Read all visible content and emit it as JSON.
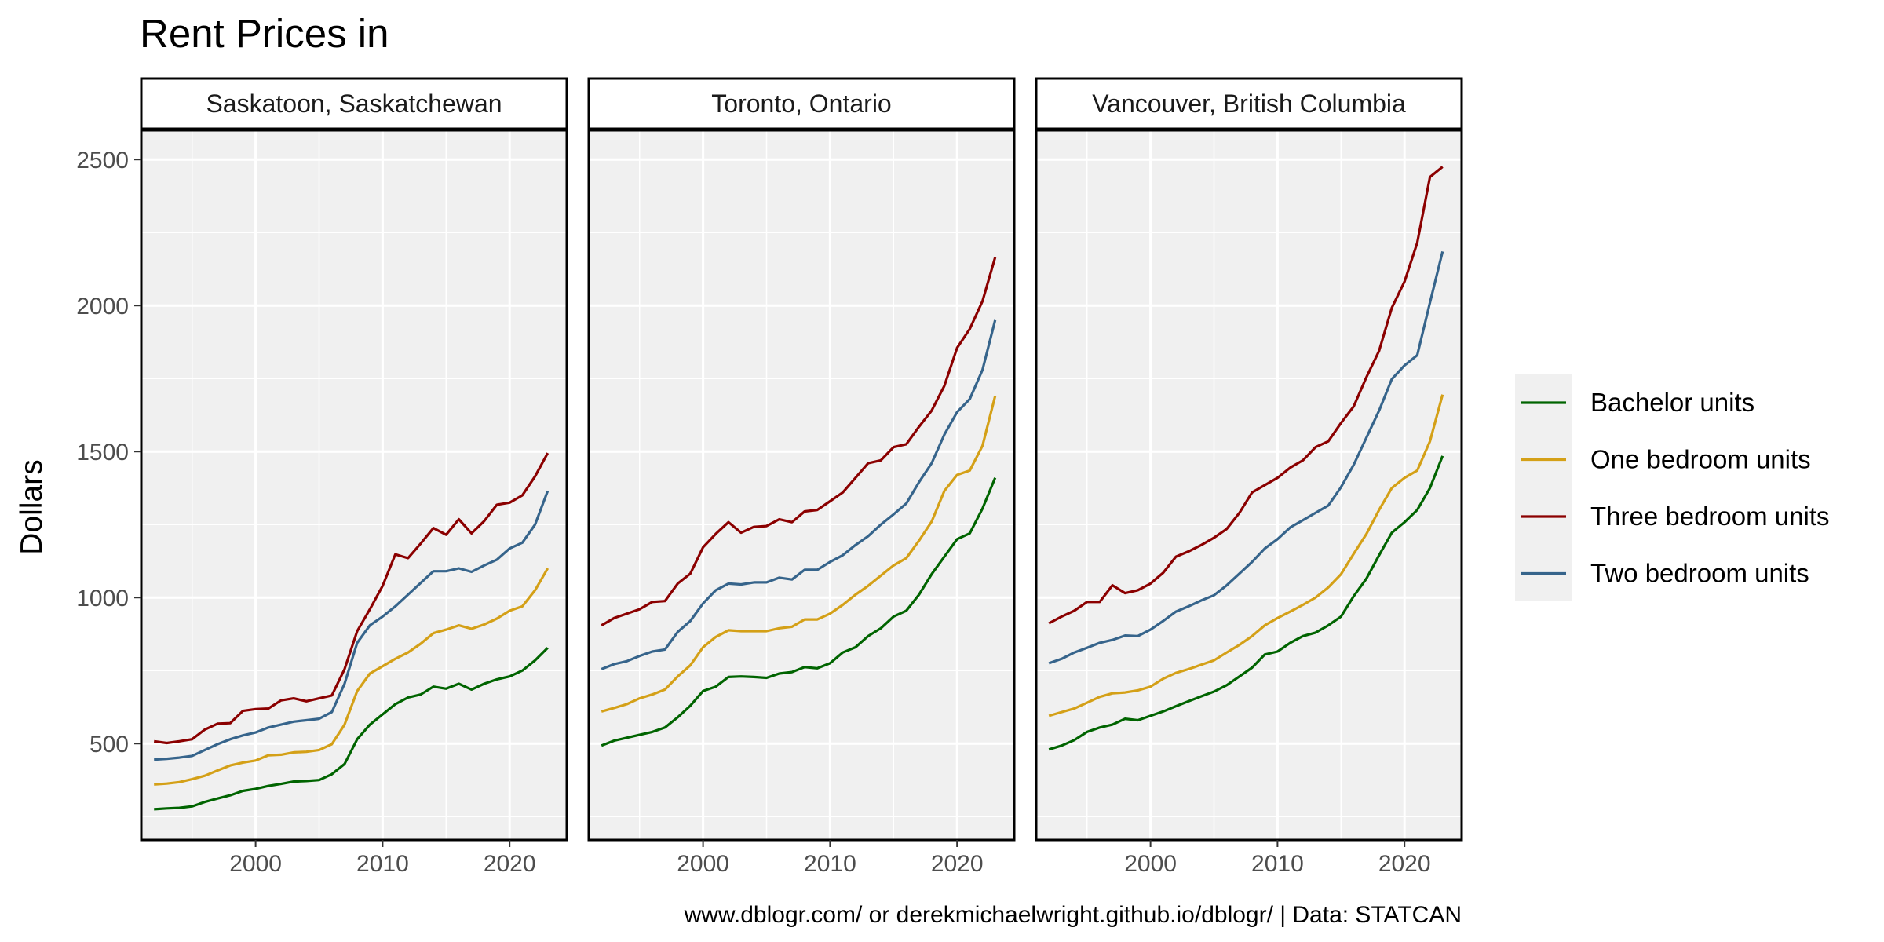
{
  "chart_data": {
    "type": "line",
    "title": "Rent Prices in",
    "ylabel": "Dollars",
    "xlabel": "",
    "caption": "www.dblogr.com/ or derekmichaelwright.github.io/dblogr/ | Data: STATCAN",
    "xlim": [
      1991,
      2024.5
    ],
    "ylim": [
      170,
      2600
    ],
    "x_ticks": [
      2000,
      2010,
      2020
    ],
    "y_ticks": [
      500,
      1000,
      1500,
      2000,
      2500
    ],
    "grid": true,
    "legend_position": "right",
    "series_styles": [
      {
        "name": "Bachelor units",
        "color": "#006400"
      },
      {
        "name": "One bedroom units",
        "color": "#D4A017"
      },
      {
        "name": "Three bedroom units",
        "color": "#8B0000"
      },
      {
        "name": "Two bedroom units",
        "color": "#36648B"
      }
    ],
    "x": [
      1992,
      1993,
      1994,
      1995,
      1996,
      1997,
      1998,
      1999,
      2000,
      2001,
      2002,
      2003,
      2004,
      2005,
      2006,
      2007,
      2008,
      2009,
      2010,
      2011,
      2012,
      2013,
      2014,
      2015,
      2016,
      2017,
      2018,
      2019,
      2020,
      2021,
      2022,
      2023
    ],
    "panels": [
      {
        "name": "Saskatoon, Saskatchewan",
        "series": [
          {
            "name": "Bachelor units",
            "values": [
              275,
              278,
              280,
              285,
              300,
              312,
              323,
              338,
              345,
              355,
              362,
              370,
              372,
              375,
              395,
              430,
              515,
              565,
              600,
              635,
              658,
              668,
              695,
              688,
              705,
              685,
              705,
              720,
              730,
              750,
              785,
              828
            ]
          },
          {
            "name": "One bedroom units",
            "values": [
              360,
              363,
              368,
              378,
              390,
              408,
              425,
              435,
              442,
              460,
              462,
              470,
              472,
              478,
              498,
              565,
              680,
              740,
              765,
              790,
              812,
              842,
              878,
              890,
              905,
              893,
              908,
              928,
              955,
              970,
              1025,
              1100
            ]
          },
          {
            "name": "Three bedroom units",
            "values": [
              508,
              502,
              508,
              515,
              548,
              568,
              570,
              612,
              618,
              620,
              648,
              655,
              645,
              655,
              665,
              755,
              885,
              960,
              1040,
              1148,
              1135,
              1185,
              1238,
              1215,
              1268,
              1220,
              1262,
              1318,
              1325,
              1350,
              1415,
              1495
            ]
          },
          {
            "name": "Two bedroom units",
            "values": [
              445,
              448,
              452,
              458,
              478,
              498,
              515,
              528,
              538,
              555,
              565,
              575,
              580,
              585,
              608,
              705,
              845,
              905,
              935,
              970,
              1010,
              1050,
              1090,
              1090,
              1100,
              1088,
              1110,
              1130,
              1168,
              1188,
              1250,
              1365
            ]
          }
        ]
      },
      {
        "name": "Toronto, Ontario",
        "series": [
          {
            "name": "Bachelor units",
            "values": [
              493,
              510,
              520,
              530,
              540,
              555,
              590,
              630,
              680,
              695,
              728,
              730,
              728,
              725,
              740,
              745,
              762,
              758,
              775,
              812,
              830,
              868,
              895,
              935,
              955,
              1010,
              1080,
              1140,
              1200,
              1220,
              1305,
              1410
            ]
          },
          {
            "name": "One bedroom units",
            "values": [
              610,
              622,
              635,
              655,
              668,
              685,
              730,
              768,
              830,
              865,
              888,
              885,
              885,
              885,
              895,
              900,
              925,
              925,
              945,
              975,
              1010,
              1040,
              1075,
              1110,
              1135,
              1195,
              1260,
              1365,
              1420,
              1435,
              1520,
              1690
            ]
          },
          {
            "name": "Three bedroom units",
            "values": [
              905,
              930,
              945,
              960,
              985,
              988,
              1048,
              1082,
              1172,
              1218,
              1258,
              1222,
              1242,
              1245,
              1268,
              1258,
              1295,
              1300,
              1330,
              1360,
              1410,
              1460,
              1470,
              1515,
              1525,
              1585,
              1640,
              1725,
              1855,
              1920,
              2015,
              2165
            ]
          },
          {
            "name": "Two bedroom units",
            "values": [
              755,
              772,
              782,
              800,
              815,
              822,
              882,
              920,
              980,
              1025,
              1048,
              1045,
              1052,
              1052,
              1068,
              1062,
              1095,
              1095,
              1122,
              1145,
              1180,
              1210,
              1250,
              1285,
              1322,
              1395,
              1460,
              1558,
              1635,
              1680,
              1780,
              1950
            ]
          }
        ]
      },
      {
        "name": "Vancouver, British Columbia",
        "series": [
          {
            "name": "Bachelor units",
            "values": [
              480,
              493,
              512,
              540,
              555,
              565,
              585,
              580,
              595,
              610,
              628,
              645,
              662,
              678,
              700,
              730,
              760,
              805,
              815,
              845,
              868,
              880,
              905,
              935,
              1005,
              1065,
              1145,
              1222,
              1258,
              1300,
              1375,
              1485
            ]
          },
          {
            "name": "One bedroom units",
            "values": [
              595,
              608,
              620,
              640,
              660,
              672,
              675,
              682,
              695,
              722,
              742,
              755,
              770,
              785,
              812,
              838,
              868,
              905,
              930,
              952,
              975,
              1000,
              1035,
              1080,
              1150,
              1218,
              1300,
              1375,
              1410,
              1435,
              1535,
              1695
            ]
          },
          {
            "name": "Three bedroom units",
            "values": [
              912,
              935,
              955,
              985,
              985,
              1042,
              1015,
              1025,
              1048,
              1085,
              1140,
              1158,
              1180,
              1205,
              1235,
              1290,
              1360,
              1385,
              1410,
              1445,
              1470,
              1515,
              1535,
              1598,
              1655,
              1755,
              1845,
              1992,
              2082,
              2215,
              2440,
              2475
            ]
          },
          {
            "name": "Two bedroom units",
            "values": [
              775,
              790,
              812,
              828,
              845,
              855,
              870,
              868,
              890,
              920,
              952,
              970,
              990,
              1008,
              1042,
              1082,
              1122,
              1168,
              1200,
              1240,
              1265,
              1290,
              1315,
              1378,
              1455,
              1548,
              1640,
              1748,
              1795,
              1830,
              2010,
              2185
            ]
          }
        ]
      }
    ]
  }
}
